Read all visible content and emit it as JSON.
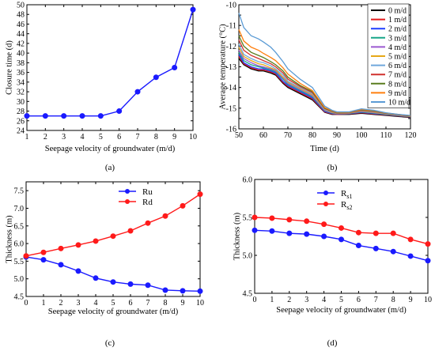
{
  "captions": [
    "(a)",
    "(b)",
    "(c)",
    "(d)"
  ],
  "chart_data": [
    {
      "id": "a",
      "type": "line",
      "xlabel": "Seepage velocity of groundwater (m/d)",
      "ylabel": "Closure time (d)",
      "xlim": [
        1,
        10
      ],
      "ylim": [
        24,
        50
      ],
      "xticks": [
        1,
        2,
        3,
        4,
        5,
        6,
        7,
        8,
        9,
        10
      ],
      "yticks": [
        24,
        26,
        28,
        30,
        32,
        34,
        36,
        38,
        40,
        42,
        44,
        46,
        48,
        50
      ],
      "series": [
        {
          "name": "",
          "color": "#1a1aff",
          "marker": "circle",
          "x": [
            1,
            2,
            3,
            4,
            5,
            6,
            7,
            8,
            9,
            10
          ],
          "y": [
            27,
            27,
            27,
            27,
            27,
            28,
            32,
            35,
            37,
            49
          ]
        }
      ]
    },
    {
      "id": "b",
      "type": "line",
      "xlabel": "Time (d)",
      "ylabel": "Average temperature (°C)",
      "xlim": [
        50,
        120
      ],
      "ylim": [
        -16,
        -10
      ],
      "xticks": [
        50,
        60,
        70,
        80,
        90,
        100,
        110,
        120
      ],
      "yticks": [
        -16,
        -15.5,
        -15,
        -14.5,
        -14,
        -13.5,
        -13,
        -12.5,
        -12,
        -11.5,
        -11,
        -10.5,
        -10
      ],
      "yticklabels": [
        "-16",
        "",
        "-15",
        "",
        "-14",
        "",
        "-13",
        "",
        "-12",
        "",
        "-11",
        "",
        "-10"
      ],
      "legend_position": "top-right",
      "x": [
        50,
        52,
        55,
        58,
        60,
        63,
        65,
        68,
        70,
        75,
        80,
        85,
        88,
        90,
        95,
        100,
        105,
        110,
        115,
        120
      ],
      "series": [
        {
          "name": "0 m/d",
          "color": "#000000",
          "y": [
            -12.6,
            -12.9,
            -13.1,
            -13.2,
            -13.2,
            -13.3,
            -13.4,
            -13.8,
            -14.0,
            -14.3,
            -14.6,
            -15.2,
            -15.3,
            -15.3,
            -15.3,
            -15.25,
            -15.3,
            -15.35,
            -15.4,
            -15.45
          ]
        },
        {
          "name": "1 m/d",
          "color": "#e41a1c",
          "y": [
            -12.5,
            -12.85,
            -13.05,
            -13.15,
            -13.15,
            -13.25,
            -13.35,
            -13.75,
            -13.95,
            -14.25,
            -14.55,
            -15.18,
            -15.28,
            -15.3,
            -15.28,
            -15.22,
            -15.28,
            -15.33,
            -15.38,
            -15.43
          ]
        },
        {
          "name": "2 m/d",
          "color": "#1f3fff",
          "y": [
            -12.4,
            -12.8,
            -13.0,
            -13.1,
            -13.1,
            -13.2,
            -13.3,
            -13.7,
            -13.9,
            -14.2,
            -14.5,
            -15.15,
            -15.26,
            -15.28,
            -15.27,
            -15.2,
            -15.26,
            -15.31,
            -15.37,
            -15.42
          ]
        },
        {
          "name": "3 m/d",
          "color": "#17a589",
          "y": [
            -12.3,
            -12.7,
            -12.9,
            -13.0,
            -13.05,
            -13.15,
            -13.25,
            -13.6,
            -13.85,
            -14.15,
            -14.45,
            -15.12,
            -15.24,
            -15.27,
            -15.26,
            -15.18,
            -15.24,
            -15.3,
            -15.36,
            -15.41
          ]
        },
        {
          "name": "4 m/d",
          "color": "#9b59d0",
          "y": [
            -12.2,
            -12.6,
            -12.8,
            -12.95,
            -13.0,
            -13.1,
            -13.2,
            -13.55,
            -13.8,
            -14.1,
            -14.4,
            -15.1,
            -15.22,
            -15.26,
            -15.25,
            -15.16,
            -15.22,
            -15.28,
            -15.35,
            -15.4
          ]
        },
        {
          "name": "5 m/d",
          "color": "#e6a817",
          "y": [
            -12.05,
            -12.5,
            -12.7,
            -12.85,
            -12.9,
            -13.05,
            -13.15,
            -13.5,
            -13.75,
            -14.05,
            -14.35,
            -15.07,
            -15.2,
            -15.25,
            -15.24,
            -15.14,
            -15.2,
            -15.27,
            -15.34,
            -15.4
          ]
        },
        {
          "name": "6 m/d",
          "color": "#6fa8dc",
          "y": [
            -11.9,
            -12.4,
            -12.6,
            -12.75,
            -12.8,
            -12.95,
            -13.1,
            -13.4,
            -13.7,
            -14.0,
            -14.3,
            -15.05,
            -15.18,
            -15.24,
            -15.23,
            -15.12,
            -15.18,
            -15.26,
            -15.33,
            -15.39
          ]
        },
        {
          "name": "7 m/d",
          "color": "#d0312d",
          "y": [
            -11.7,
            -12.2,
            -12.45,
            -12.6,
            -12.7,
            -12.85,
            -13.0,
            -13.3,
            -13.6,
            -13.95,
            -14.25,
            -15.02,
            -15.16,
            -15.23,
            -15.22,
            -15.1,
            -15.16,
            -15.25,
            -15.32,
            -15.38
          ]
        },
        {
          "name": "8 m/d",
          "color": "#5a7d1e",
          "y": [
            -11.5,
            -12.0,
            -12.3,
            -12.45,
            -12.55,
            -12.75,
            -12.9,
            -13.2,
            -13.5,
            -13.9,
            -14.2,
            -15.0,
            -15.14,
            -15.22,
            -15.21,
            -15.08,
            -15.14,
            -15.24,
            -15.31,
            -15.37
          ]
        },
        {
          "name": "9 m/d",
          "color": "#ff7f0e",
          "y": [
            -11.2,
            -11.75,
            -12.05,
            -12.2,
            -12.35,
            -12.55,
            -12.7,
            -13.05,
            -13.35,
            -13.8,
            -14.15,
            -14.97,
            -15.12,
            -15.2,
            -15.2,
            -15.06,
            -15.12,
            -15.23,
            -15.3,
            -15.36
          ]
        },
        {
          "name": "10 m/d",
          "color": "#5b9bd5",
          "y": [
            -10.4,
            -11.1,
            -11.5,
            -11.65,
            -11.8,
            -12.05,
            -12.3,
            -12.75,
            -13.1,
            -13.6,
            -14.0,
            -14.9,
            -15.1,
            -15.18,
            -15.18,
            -15.03,
            -15.1,
            -15.22,
            -15.3,
            -15.35
          ]
        }
      ]
    },
    {
      "id": "c",
      "type": "line",
      "xlabel": "Seepage velocity of groundwater (m/d)",
      "ylabel": "Thickness (m)",
      "xlim": [
        0,
        10
      ],
      "ylim": [
        4.5,
        7.75
      ],
      "xticks": [
        0,
        1,
        2,
        3,
        4,
        5,
        6,
        7,
        8,
        9,
        10
      ],
      "yticks": [
        4.5,
        5.0,
        5.5,
        6.0,
        6.5,
        7.0,
        7.5
      ],
      "yticklabels": [
        "4.5",
        "5.0",
        "5.5",
        "6.0",
        "6.5",
        "7.0",
        "7.5"
      ],
      "legend_position": "top-center",
      "x": [
        0,
        1,
        2,
        3,
        4,
        5,
        6,
        7,
        8,
        9,
        10
      ],
      "series": [
        {
          "name": "Ru",
          "color": "#1a1aff",
          "marker": "circle",
          "y": [
            5.62,
            5.54,
            5.4,
            5.22,
            5.02,
            4.91,
            4.85,
            4.82,
            4.68,
            4.66,
            4.65
          ]
        },
        {
          "name": "Rd",
          "color": "#ff1a1a",
          "marker": "circle",
          "y": [
            5.65,
            5.75,
            5.86,
            5.96,
            6.07,
            6.21,
            6.36,
            6.58,
            6.78,
            7.07,
            7.4
          ]
        }
      ]
    },
    {
      "id": "d",
      "type": "line",
      "xlabel": "Seepage velocity of groundwater (m/d)",
      "ylabel": "Thickness (m)",
      "xlim": [
        0,
        10
      ],
      "ylim": [
        4.5,
        6.0
      ],
      "xticks": [
        0,
        1,
        2,
        3,
        4,
        5,
        6,
        7,
        8,
        9,
        10
      ],
      "yticks": [
        4.5,
        5.0,
        5.5,
        6.0
      ],
      "yticklabels": [
        "4.5",
        "5.0",
        "5.5",
        "6.0"
      ],
      "legend_position": "top-center",
      "x": [
        0,
        1,
        2,
        3,
        4,
        5,
        6,
        7,
        8,
        9,
        10
      ],
      "series": [
        {
          "name": "R",
          "sub": "s1",
          "color": "#1a1aff",
          "marker": "circle",
          "y": [
            5.33,
            5.32,
            5.29,
            5.28,
            5.25,
            5.21,
            5.13,
            5.09,
            5.05,
            4.99,
            4.93
          ]
        },
        {
          "name": "R",
          "sub": "s2",
          "color": "#ff1a1a",
          "marker": "circle",
          "y": [
            5.5,
            5.49,
            5.47,
            5.45,
            5.41,
            5.36,
            5.3,
            5.29,
            5.29,
            5.21,
            5.15
          ]
        }
      ]
    }
  ]
}
